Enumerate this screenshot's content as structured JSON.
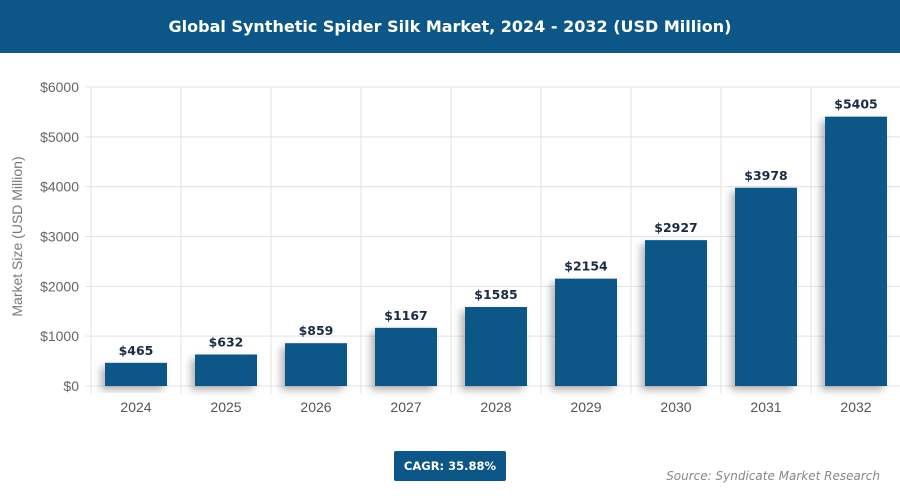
{
  "header": {
    "title": "Global Synthetic Spider Silk Market, 2024 - 2032 (USD Million)"
  },
  "chart_data": {
    "type": "bar",
    "title": "Global Synthetic Spider Silk Market, 2024 - 2032 (USD Million)",
    "xlabel": "",
    "ylabel": "Market Size (USD Million)",
    "categories": [
      "2024",
      "2025",
      "2026",
      "2027",
      "2028",
      "2029",
      "2030",
      "2031",
      "2032"
    ],
    "values": [
      465,
      632,
      859,
      1167,
      1585,
      2154,
      2927,
      3978,
      5405
    ],
    "data_labels": [
      "$465",
      "$632",
      "$859",
      "$1167",
      "$1585",
      "$2154",
      "$2927",
      "$3978",
      "$5405"
    ],
    "ylim": [
      0,
      6000
    ],
    "yticks": [
      "$0",
      "$1000",
      "$2000",
      "$3000",
      "$4000",
      "$5000",
      "$6000"
    ],
    "grid": true,
    "bar_color": "#0d5788"
  },
  "footer": {
    "cagr": "CAGR: 35.88%",
    "source": "Source: Syndicate Market Research"
  }
}
